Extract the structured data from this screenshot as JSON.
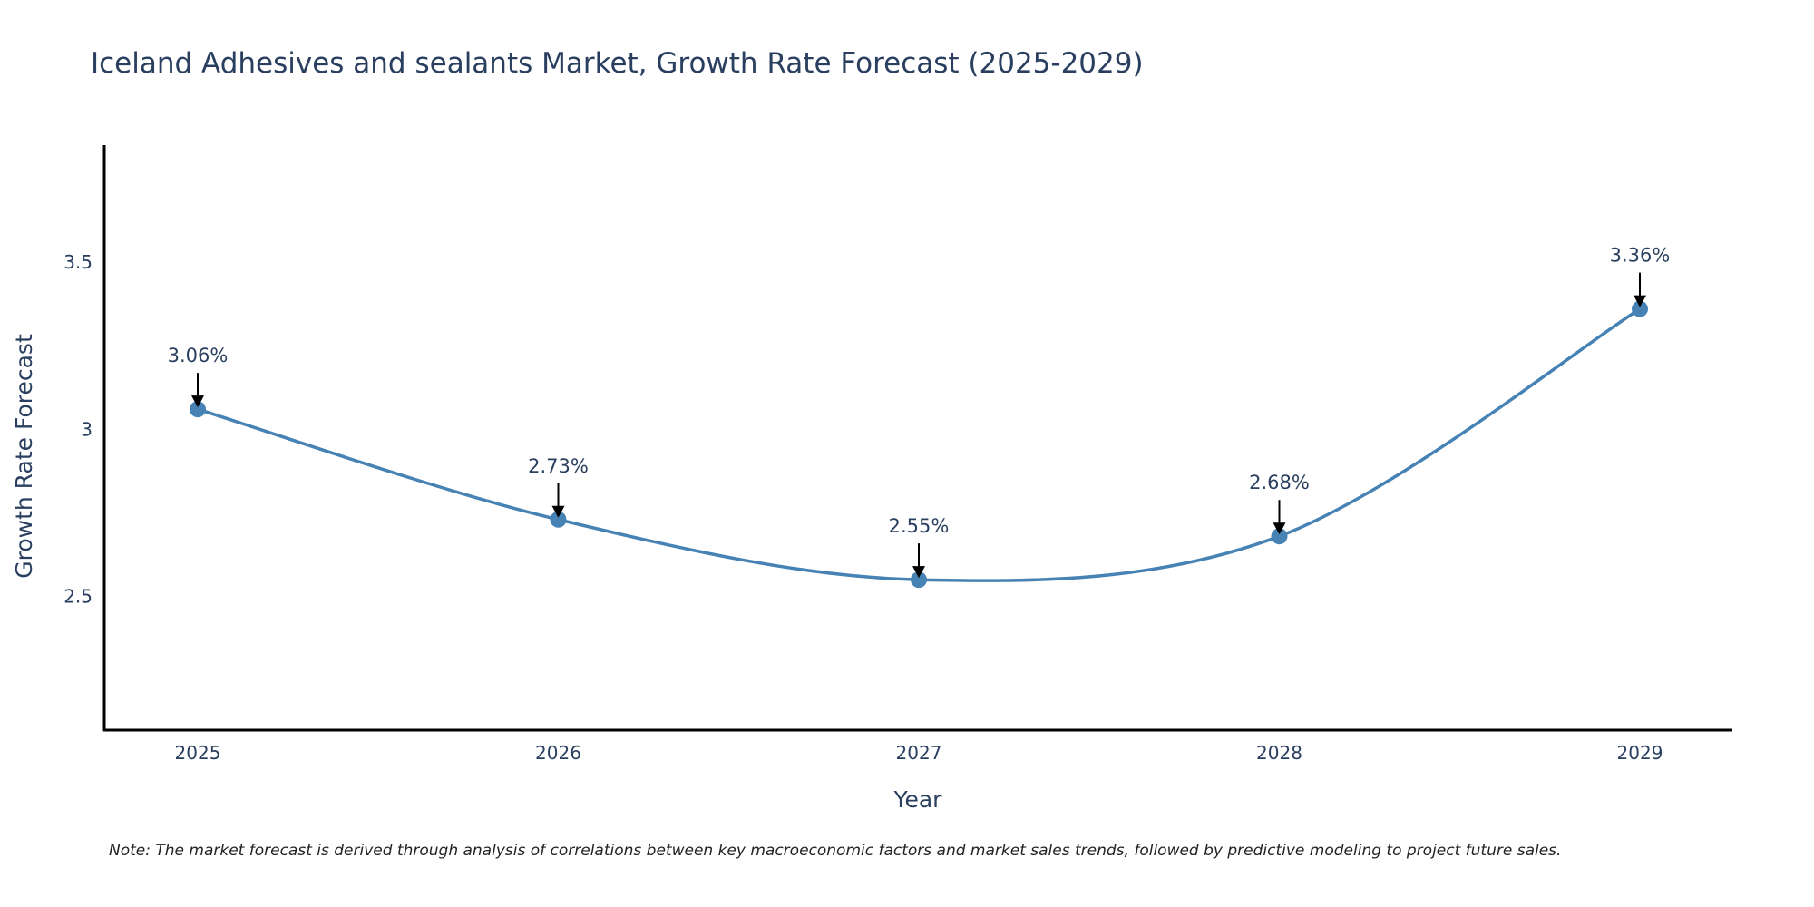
{
  "chart_data": {
    "type": "line",
    "title": "Iceland Adhesives and sealants Market, Growth Rate Forecast (2025-2029)",
    "xlabel": "Year",
    "ylabel": "Growth Rate Forecast",
    "x": [
      "2025",
      "2026",
      "2027",
      "2028",
      "2029"
    ],
    "series": [
      {
        "values": [
          3.06,
          2.73,
          2.55,
          2.68,
          3.36
        ],
        "labels": [
          "3.06%",
          "2.73%",
          "2.55%",
          "2.68%",
          "3.36%"
        ],
        "color": "#4682b4"
      }
    ],
    "yticks": [
      "2.5",
      "3",
      "3.5"
    ],
    "ylim": [
      2.1,
      3.85
    ],
    "grid": false,
    "line_shape": "spline",
    "note": "Note: The market forecast is derived through analysis of correlations between key macroeconomic factors and market sales trends, followed by predictive modeling to project future sales."
  }
}
